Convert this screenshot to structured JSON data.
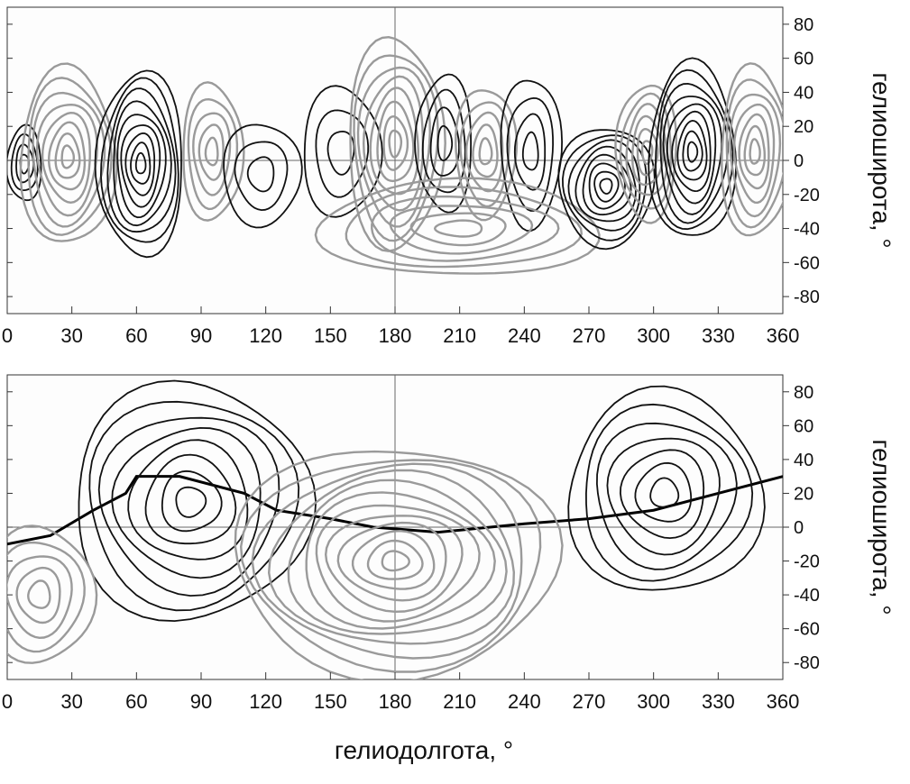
{
  "chart_data": [
    {
      "type": "contour",
      "panel": "top",
      "xlim": [
        0,
        360
      ],
      "ylim": [
        -90,
        90
      ],
      "xticks": [
        0,
        30,
        60,
        90,
        120,
        150,
        180,
        210,
        240,
        270,
        300,
        330,
        360
      ],
      "yticks": [
        -80,
        -60,
        -40,
        -20,
        0,
        20,
        40,
        60,
        80
      ],
      "ylabel": "гелиоширота, °",
      "reference_lines": {
        "x": 180,
        "y": 0
      },
      "colors": {
        "positive": "#111111",
        "negative": "#9a9a9a"
      },
      "contour_cells": [
        {
          "polarity": "positive",
          "lon": 8,
          "lat": -2,
          "half_width": 8,
          "half_height": 22,
          "levels": 4
        },
        {
          "polarity": "negative",
          "lon": 28,
          "lat": 2,
          "half_width": 22,
          "half_height": 52,
          "levels": 8
        },
        {
          "polarity": "positive",
          "lon": 62,
          "lat": -2,
          "half_width": 20,
          "half_height": 54,
          "levels": 9
        },
        {
          "polarity": "negative",
          "lon": 95,
          "lat": 5,
          "half_width": 14,
          "half_height": 40,
          "levels": 5
        },
        {
          "polarity": "positive",
          "lon": 118,
          "lat": -8,
          "half_width": 18,
          "half_height": 30,
          "levels": 3
        },
        {
          "polarity": "positive",
          "lon": 155,
          "lat": 5,
          "half_width": 18,
          "half_height": 38,
          "levels": 3
        },
        {
          "polarity": "negative",
          "lon": 180,
          "lat": 10,
          "half_width": 22,
          "half_height": 62,
          "levels": 8
        },
        {
          "polarity": "positive",
          "lon": 203,
          "lat": 10,
          "half_width": 13,
          "half_height": 40,
          "levels": 4
        },
        {
          "polarity": "negative",
          "lon": 222,
          "lat": 5,
          "half_width": 14,
          "half_height": 38,
          "levels": 5
        },
        {
          "polarity": "positive",
          "lon": 243,
          "lat": 5,
          "half_width": 14,
          "half_height": 44,
          "levels": 4
        },
        {
          "polarity": "negative",
          "lon": 210,
          "lat": -40,
          "half_width": 65,
          "half_height": 28,
          "levels": 6
        },
        {
          "polarity": "positive",
          "lon": 278,
          "lat": -15,
          "half_width": 22,
          "half_height": 35,
          "levels": 8
        },
        {
          "polarity": "negative",
          "lon": 297,
          "lat": 5,
          "half_width": 14,
          "half_height": 40,
          "levels": 6
        },
        {
          "polarity": "positive",
          "lon": 318,
          "lat": 5,
          "half_width": 20,
          "half_height": 52,
          "levels": 9
        },
        {
          "polarity": "negative",
          "lon": 347,
          "lat": 5,
          "half_width": 16,
          "half_height": 50,
          "levels": 7
        }
      ]
    },
    {
      "type": "contour",
      "panel": "bottom",
      "xlim": [
        0,
        360
      ],
      "ylim": [
        -90,
        90
      ],
      "xticks": [
        0,
        30,
        60,
        90,
        120,
        150,
        180,
        210,
        240,
        270,
        300,
        330,
        360
      ],
      "yticks": [
        -80,
        -60,
        -40,
        -20,
        0,
        20,
        40,
        60,
        80
      ],
      "xlabel": "гелиодолгота, °",
      "ylabel": "гелиоширота, °",
      "reference_lines": {
        "x": 180,
        "y": 0
      },
      "colors": {
        "positive": "#111111",
        "negative": "#9a9a9a"
      },
      "neutral_line": {
        "lon": [
          0,
          20,
          40,
          55,
          60,
          80,
          110,
          125,
          150,
          170,
          200,
          240,
          270,
          300,
          330,
          360
        ],
        "lat": [
          -10,
          -5,
          10,
          20,
          30,
          30,
          20,
          10,
          5,
          0,
          -3,
          2,
          5,
          10,
          20,
          30
        ]
      },
      "contour_cells": [
        {
          "polarity": "positive",
          "lon": 85,
          "lat": 15,
          "half_width": 55,
          "half_height": 70,
          "levels": 8
        },
        {
          "polarity": "negative",
          "lon": 180,
          "lat": -20,
          "half_width": 75,
          "half_height": 68,
          "levels": 12
        },
        {
          "polarity": "positive",
          "lon": 305,
          "lat": 20,
          "half_width": 45,
          "half_height": 60,
          "levels": 7
        },
        {
          "polarity": "negative",
          "lon": 15,
          "lat": -40,
          "half_width": 25,
          "half_height": 40,
          "levels": 5
        }
      ]
    }
  ]
}
